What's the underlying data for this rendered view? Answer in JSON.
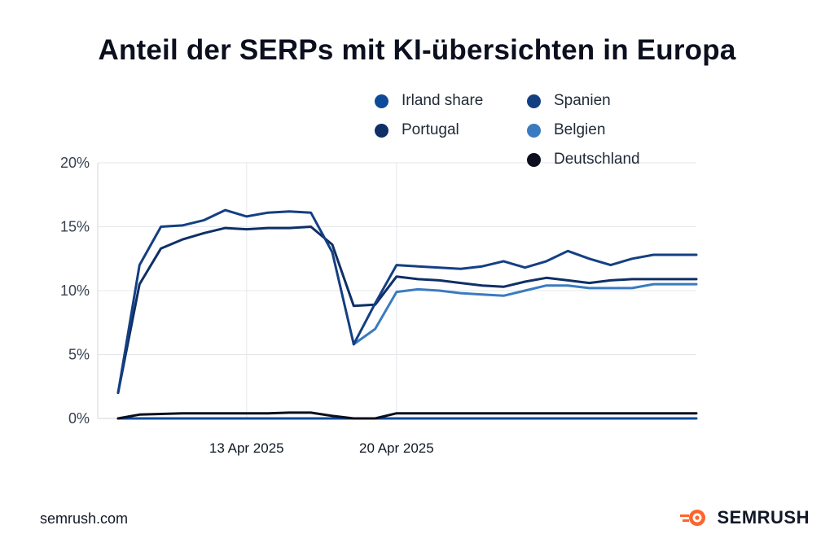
{
  "title": "Anteil der SERPs mit KI-übersichten in Europa",
  "footer": {
    "source": "semrush.com",
    "brand": "SEMRUSH"
  },
  "brand_logo_icon": "semrush-flame-icon",
  "brand_color": "#ff642d",
  "chart_data": {
    "type": "line",
    "title": "Anteil der SERPs mit KI-übersichten in Europa",
    "xlabel": "",
    "ylabel": "",
    "ylim": [
      0,
      20
    ],
    "yticks": [
      {
        "value": 0,
        "label": "0%"
      },
      {
        "value": 5,
        "label": "5%"
      },
      {
        "value": 10,
        "label": "10%"
      },
      {
        "value": 15,
        "label": "15%"
      },
      {
        "value": 20,
        "label": "20%"
      }
    ],
    "xticks": [
      {
        "x": "2025-04-13",
        "label": "13 Apr 2025"
      },
      {
        "x": "2025-04-20",
        "label": "20 Apr 2025"
      }
    ],
    "x": [
      "2025-04-07",
      "2025-04-08",
      "2025-04-09",
      "2025-04-10",
      "2025-04-11",
      "2025-04-12",
      "2025-04-13",
      "2025-04-14",
      "2025-04-15",
      "2025-04-16",
      "2025-04-17",
      "2025-04-18",
      "2025-04-19",
      "2025-04-20",
      "2025-04-21",
      "2025-04-22",
      "2025-04-23",
      "2025-04-24",
      "2025-04-25",
      "2025-04-26",
      "2025-04-27",
      "2025-04-28",
      "2025-04-29",
      "2025-04-30",
      "2025-05-01",
      "2025-05-02",
      "2025-05-03",
      "2025-05-04"
    ],
    "legend_position": "top-right",
    "grid": true,
    "series": [
      {
        "name": "Irland share",
        "color": "#0d4a9a",
        "values": [
          0,
          0,
          0,
          0,
          0,
          0,
          0,
          0,
          0,
          0,
          0,
          0,
          0,
          0,
          0,
          0,
          0,
          0,
          0,
          0,
          0,
          0,
          0,
          0,
          0,
          0,
          0,
          0
        ]
      },
      {
        "name": "Spanien",
        "color": "#143f82",
        "values": [
          2,
          12,
          15,
          15.1,
          15.5,
          16.3,
          15.8,
          16.1,
          16.2,
          16.1,
          13,
          5.8,
          9,
          12,
          11.9,
          11.8,
          11.7,
          11.9,
          12.3,
          11.8,
          12.3,
          13.1,
          12.5,
          12,
          12.5,
          12.8,
          12.8,
          12.8
        ]
      },
      {
        "name": "Portugal",
        "color": "#0f2f66",
        "values": [
          2,
          10.5,
          13.3,
          14,
          14.5,
          14.9,
          14.8,
          14.9,
          14.9,
          15,
          13.6,
          8.8,
          8.9,
          11.1,
          10.9,
          10.8,
          10.6,
          10.4,
          10.3,
          10.7,
          11,
          10.8,
          10.6,
          10.8,
          10.9,
          10.9,
          10.9,
          10.9
        ]
      },
      {
        "name": "Belgien",
        "color": "#3a7bc0",
        "values": [
          null,
          null,
          null,
          null,
          null,
          null,
          null,
          null,
          null,
          null,
          null,
          5.8,
          7,
          9.9,
          10.1,
          10,
          9.8,
          9.7,
          9.6,
          10,
          10.4,
          10.4,
          10.2,
          10.2,
          10.2,
          10.5,
          10.5,
          10.5
        ]
      },
      {
        "name": "Deutschland",
        "color": "#0b0f1e",
        "values": [
          0,
          0.3,
          0.35,
          0.4,
          0.4,
          0.4,
          0.4,
          0.4,
          0.45,
          0.45,
          0.2,
          0,
          0,
          0.4,
          0.4,
          0.4,
          0.4,
          0.4,
          0.4,
          0.4,
          0.4,
          0.4,
          0.4,
          0.4,
          0.4,
          0.4,
          0.4,
          0.4
        ]
      }
    ]
  }
}
